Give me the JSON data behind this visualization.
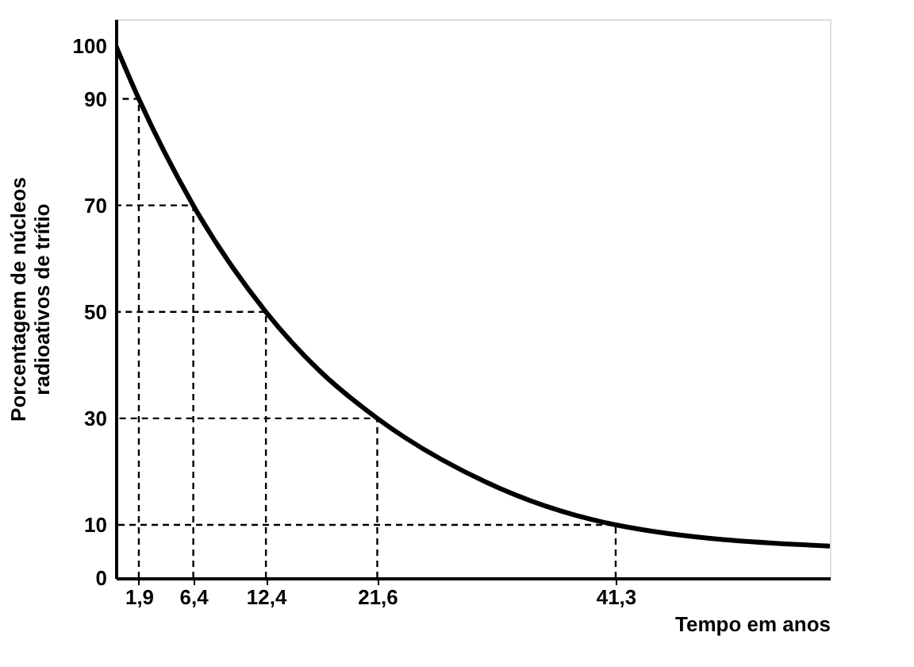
{
  "chart_data": {
    "type": "line",
    "xlabel": "Tempo em anos",
    "ylabel": "Porcentagem de núcleos\nradioativos de trítio",
    "x": [
      0,
      1.9,
      6.4,
      12.4,
      16.8,
      21.6,
      30.6,
      41.3,
      59
    ],
    "series": [
      {
        "color": "#000000",
        "values": [
          100,
          90,
          70,
          50,
          39,
          30,
          18,
          10,
          6
        ]
      },
      {
        "color": "#000000",
        "line_style": "dashed",
        "x": [
          1.9,
          1.9,
          0
        ],
        "values": [
          0,
          90,
          90
        ]
      },
      {
        "color": "#000000",
        "line_style": "dashed",
        "x": [
          6.4,
          6.4,
          0
        ],
        "values": [
          0,
          70,
          70
        ]
      },
      {
        "color": "#000000",
        "line_style": "dashed",
        "x": [
          12.4,
          12.4,
          0
        ],
        "values": [
          0,
          50,
          50
        ]
      },
      {
        "color": "#000000",
        "line_style": "dashed",
        "x": [
          21.6,
          21.6,
          0
        ],
        "values": [
          0,
          30,
          30
        ]
      },
      {
        "color": "#000000",
        "line_style": "dashed",
        "x": [
          41.3,
          41.3,
          0
        ],
        "values": [
          0,
          10,
          10
        ]
      }
    ],
    "xlim": [
      0,
      59
    ],
    "xticks": [
      {
        "value": 1.9,
        "label": "1,9"
      },
      {
        "value": 6.4,
        "label": "6,4"
      },
      {
        "value": 12.4,
        "label": "12,4"
      },
      {
        "value": 21.6,
        "label": "21,6"
      },
      {
        "value": 41.3,
        "label": "41,3"
      }
    ],
    "ylim": [
      0,
      105
    ],
    "yticks": [
      0,
      10,
      30,
      50,
      70,
      90,
      100
    ],
    "marker": "none",
    "line_style": "solid"
  }
}
